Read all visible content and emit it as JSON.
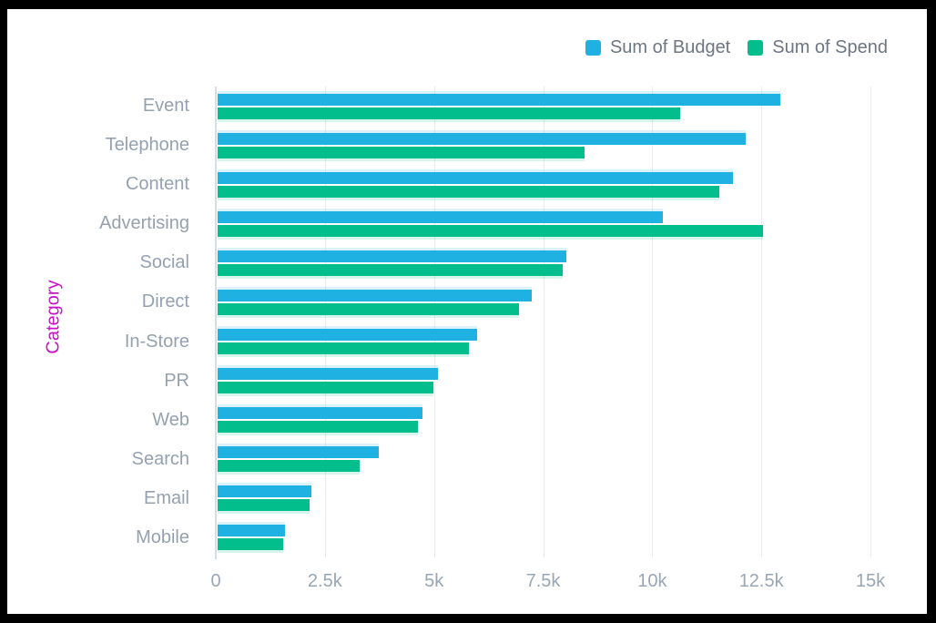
{
  "frame": {
    "border_color": "#000000",
    "background": "#ffffff"
  },
  "legend": [
    {
      "label": "Sum of Budget",
      "color": "#1eb1e2"
    },
    {
      "label": "Sum of Spend",
      "color": "#02be8c"
    }
  ],
  "chart_data": {
    "type": "bar",
    "orientation": "horizontal",
    "ylabel": "Category",
    "xlabel": "",
    "categories": [
      "Event",
      "Telephone",
      "Content",
      "Advertising",
      "Social",
      "Direct",
      "In-Store",
      "PR",
      "Web",
      "Search",
      "Email",
      "Mobile"
    ],
    "series": [
      {
        "name": "Sum of Budget",
        "color": "#1eb1e2",
        "values": [
          12900,
          12100,
          11800,
          10200,
          8000,
          7200,
          5950,
          5050,
          4700,
          3700,
          2150,
          1550
        ]
      },
      {
        "name": "Sum of Spend",
        "color": "#02be8c",
        "values": [
          10600,
          8400,
          11500,
          12500,
          7900,
          6900,
          5750,
          4950,
          4600,
          3250,
          2100,
          1500
        ]
      }
    ],
    "xlim": [
      0,
      15000
    ],
    "x_ticks": [
      {
        "label": "0",
        "value": 0
      },
      {
        "label": "2.5k",
        "value": 2500
      },
      {
        "label": "5k",
        "value": 5000
      },
      {
        "label": "7.5k",
        "value": 7500
      },
      {
        "label": "10k",
        "value": 10000
      },
      {
        "label": "12.5k",
        "value": 12500
      },
      {
        "label": "15k",
        "value": 15000
      }
    ],
    "grid": "vertical",
    "legend_position": "top-right",
    "colors": {
      "ylabel_color": "#c713c7",
      "axis_line": "#d5dde8",
      "gridline": "#e9ebee",
      "tick_text": "#9aa6b4",
      "category_text": "#95a1af",
      "legend_text": "#6d7682"
    }
  }
}
